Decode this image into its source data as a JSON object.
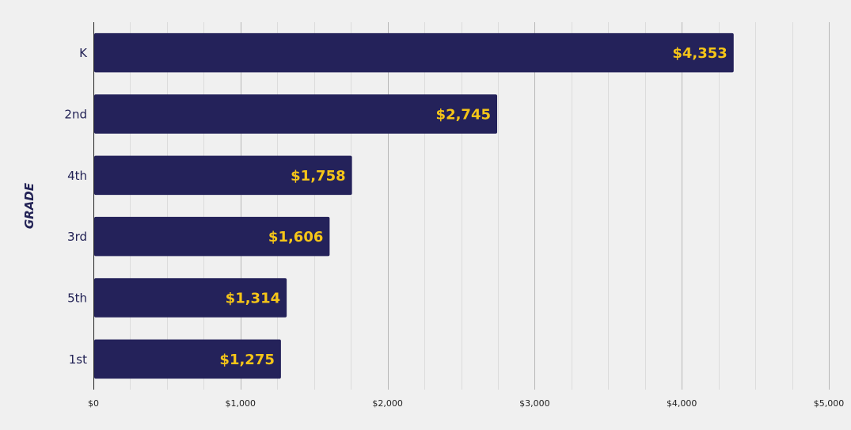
{
  "chart_data": {
    "type": "bar",
    "orientation": "horizontal",
    "title": "",
    "xlabel": "",
    "ylabel": "GRADE",
    "categories": [
      "K",
      "2nd",
      "4th",
      "3rd",
      "5th",
      "1st"
    ],
    "values": [
      4353,
      2745,
      1758,
      1606,
      1314,
      1275
    ],
    "data_labels": [
      "$4,353",
      "$2,745",
      "$1,758",
      "$1,606",
      "$1,314",
      "$1,275"
    ],
    "xlim": [
      0,
      5000
    ],
    "x_ticks": [
      0,
      1000,
      2000,
      3000,
      4000,
      5000
    ],
    "x_tick_labels": [
      "$0",
      "$1,000",
      "$2,000",
      "$3,000",
      "$4,000",
      "$5,000"
    ],
    "grid": true,
    "legend": "none",
    "colors": {
      "bar": "#24225a",
      "data_label": "#f5c518",
      "background": "#f0f0f0"
    }
  }
}
